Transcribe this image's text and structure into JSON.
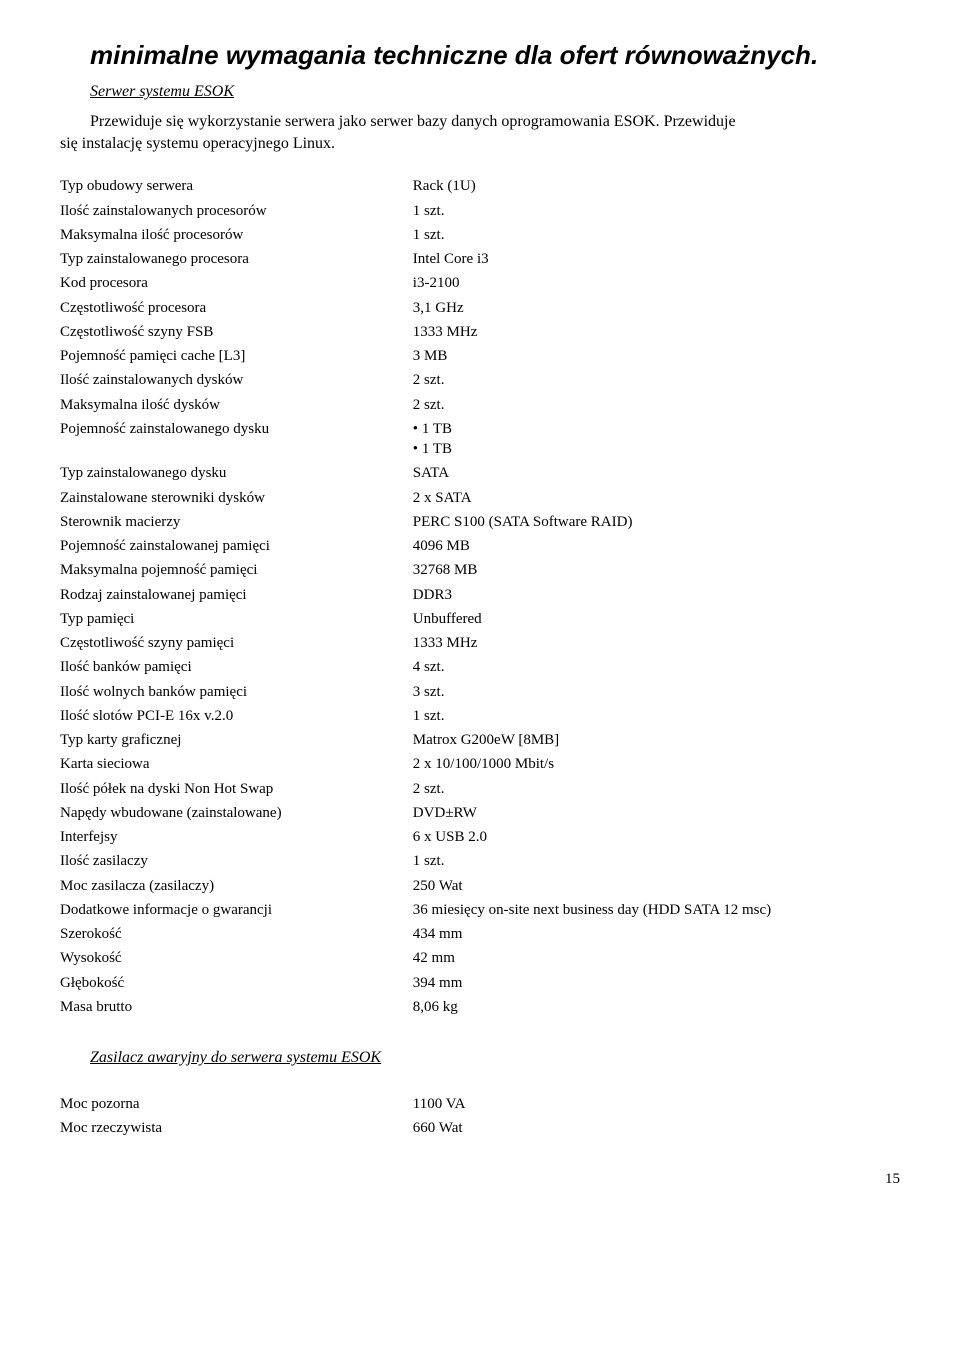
{
  "title": "minimalne wymagania techniczne dla ofert równoważnych.",
  "section1": {
    "heading": "Serwer systemu ESOK",
    "intro_line1": "Przewiduje się wykorzystanie serwera jako serwer bazy danych oprogramowania ESOK. Przewiduje",
    "intro_line2": "się instalację systemu operacyjnego Linux."
  },
  "specs": [
    {
      "label": "Typ obudowy serwera",
      "value": "Rack (1U)"
    },
    {
      "label": "Ilość zainstalowanych procesorów",
      "value": "1 szt."
    },
    {
      "label": "Maksymalna ilość procesorów",
      "value": "1 szt."
    },
    {
      "label": "Typ zainstalowanego procesora",
      "value": "Intel Core i3"
    },
    {
      "label": "Kod procesora",
      "value": "i3-2100"
    },
    {
      "label": "Częstotliwość procesora",
      "value": "3,1 GHz"
    },
    {
      "label": "Częstotliwość szyny FSB",
      "value": "1333 MHz"
    },
    {
      "label": "Pojemność pamięci cache [L3]",
      "value": "3 MB"
    },
    {
      "label": "Ilość zainstalowanych dysków",
      "value": "2 szt."
    },
    {
      "label": "Maksymalna ilość dysków",
      "value": "2 szt."
    },
    {
      "label": "Pojemność zainstalowanego dysku",
      "value_bullets": [
        "1 TB",
        "1 TB"
      ]
    },
    {
      "label": "Typ zainstalowanego dysku",
      "value": "SATA"
    },
    {
      "label": "Zainstalowane sterowniki dysków",
      "value": "2 x SATA"
    },
    {
      "label": "Sterownik macierzy",
      "value": "PERC S100 (SATA Software RAID)"
    },
    {
      "label": "Pojemność zainstalowanej pamięci",
      "value": "4096 MB"
    },
    {
      "label": "Maksymalna pojemność pamięci",
      "value": "32768 MB"
    },
    {
      "label": "Rodzaj zainstalowanej pamięci",
      "value": "DDR3"
    },
    {
      "label": "Typ pamięci",
      "value": "Unbuffered"
    },
    {
      "label": "Częstotliwość szyny pamięci",
      "value": "1333 MHz"
    },
    {
      "label": "Ilość banków pamięci",
      "value": "4 szt."
    },
    {
      "label": "Ilość wolnych banków pamięci",
      "value": "3 szt."
    },
    {
      "label": "Ilość slotów PCI-E 16x v.2.0",
      "value": "1 szt."
    },
    {
      "label": "Typ karty graficznej",
      "value": "Matrox G200eW [8MB]"
    },
    {
      "label": "Karta sieciowa",
      "value": "2 x 10/100/1000 Mbit/s"
    },
    {
      "label": "Ilość półek na dyski Non Hot Swap",
      "value": "2 szt."
    },
    {
      "label": "Napędy wbudowane (zainstalowane)",
      "value": "DVD±RW"
    },
    {
      "label": "Interfejsy",
      "value": "6 x USB 2.0"
    },
    {
      "label": "Ilość zasilaczy",
      "value": "1 szt."
    },
    {
      "label": "Moc zasilacza (zasilaczy)",
      "value": "250 Wat"
    },
    {
      "label": "Dodatkowe informacje o gwarancji",
      "value": "36 miesięcy on-site next business day (HDD SATA 12 msc)"
    },
    {
      "label": "Szerokość",
      "value": "434 mm"
    },
    {
      "label": "Wysokość",
      "value": "42 mm"
    },
    {
      "label": "Głębokość",
      "value": "394 mm"
    },
    {
      "label": "Masa brutto",
      "value": "8,06 kg"
    }
  ],
  "section2": {
    "heading": "Zasilacz awaryjny do serwera systemu ESOK"
  },
  "specs2": [
    {
      "label": "Moc pozorna",
      "value": "1100 VA"
    },
    {
      "label": "Moc rzeczywista",
      "value": "660 Wat"
    }
  ],
  "page_number": "15"
}
